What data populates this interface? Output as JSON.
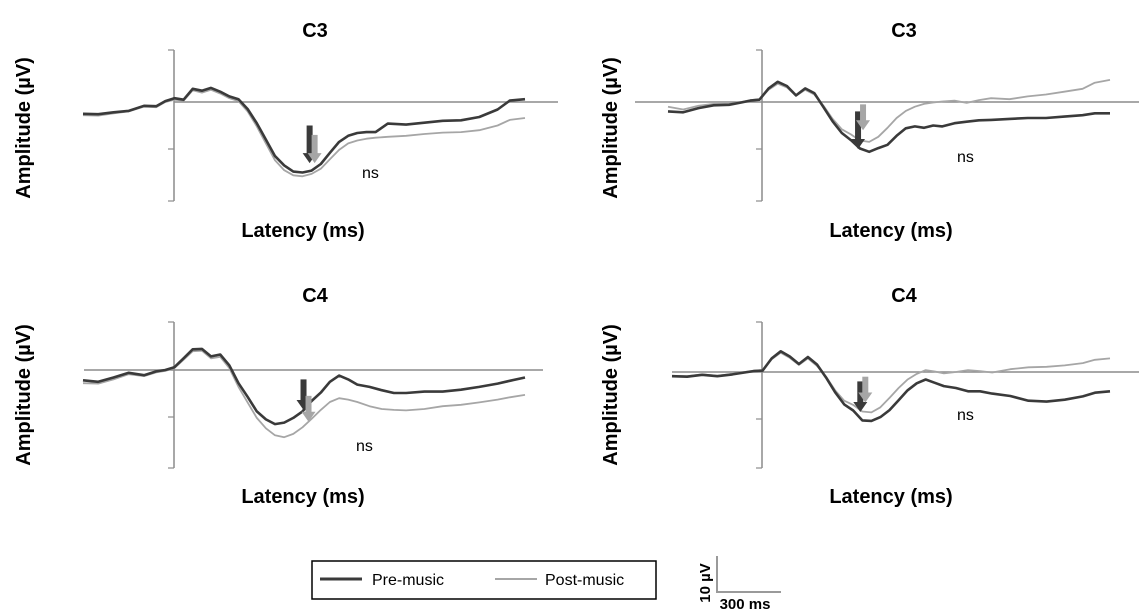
{
  "chart_data": {
    "type": "line",
    "legend": {
      "placement": "bottom-center",
      "entries": [
        {
          "label": "Pre-music",
          "color": "#3a3a3a"
        },
        {
          "label": "Post-music",
          "color": "#a6a6a6"
        }
      ]
    },
    "scale_bar": {
      "amplitude_label": "10 µV",
      "time_label": "300 ms"
    },
    "panels": [
      {
        "title": "C3",
        "xlabel": "Latency (ms)",
        "ylabel": "Amplitude (µV)",
        "annotation": "ns",
        "xlim": [
          -300,
          1150
        ],
        "ylim": [
          -21,
          11
        ],
        "arrow_x": 450,
        "arrows": [
          {
            "series": "Pre-music",
            "y_start": -5,
            "y_end": -13
          },
          {
            "series": "Post-music",
            "y_start": -7,
            "y_end": -13
          }
        ],
        "series": [
          {
            "name": "Pre-music",
            "x": [
              -300,
              -250,
              -200,
              -150,
              -100,
              -60,
              -30,
              0,
              30,
              60,
              90,
              120,
              150,
              180,
              210,
              240,
              270,
              300,
              330,
              360,
              390,
              420,
              450,
              480,
              510,
              540,
              570,
              600,
              630,
              660,
              700,
              760,
              820,
              880,
              940,
              1000,
              1060,
              1100,
              1150
            ],
            "y": [
              -2.5,
              -2.6,
              -2.2,
              -1.9,
              -0.8,
              -0.9,
              0.2,
              0.8,
              0.5,
              2.8,
              2.4,
              3.0,
              2.2,
              1.2,
              0.6,
              -1.5,
              -4.5,
              -8,
              -11.5,
              -13.5,
              -14.8,
              -15,
              -14.6,
              -13.2,
              -10.8,
              -8.5,
              -7.2,
              -6.6,
              -6.4,
              -6.4,
              -4.6,
              -4.8,
              -4.4,
              -4.0,
              -3.9,
              -3.2,
              -1.6,
              0.3,
              0.6
            ]
          },
          {
            "name": "Post-music",
            "x": [
              -300,
              -250,
              -200,
              -150,
              -100,
              -60,
              -30,
              0,
              30,
              60,
              90,
              120,
              150,
              180,
              210,
              240,
              270,
              300,
              330,
              360,
              390,
              420,
              450,
              480,
              510,
              540,
              570,
              600,
              630,
              660,
              700,
              760,
              820,
              880,
              940,
              1000,
              1060,
              1100,
              1150
            ],
            "y": [
              -2.8,
              -2.9,
              -2.4,
              -2.0,
              -1.0,
              -1.1,
              0,
              0.5,
              0.3,
              2.5,
              2.0,
              2.6,
              1.8,
              0.8,
              0.2,
              -2.0,
              -5.2,
              -8.8,
              -12.4,
              -14.5,
              -15.6,
              -15.8,
              -15.3,
              -14.2,
              -12.2,
              -10.2,
              -8.8,
              -8.2,
              -7.8,
              -7.6,
              -7.4,
              -7.2,
              -6.8,
              -6.5,
              -6.4,
              -6.0,
              -5.0,
              -3.8,
              -3.4
            ]
          }
        ]
      },
      {
        "title": "C3",
        "xlabel": "Latency (ms)",
        "ylabel": "Amplitude (µV)",
        "annotation": "ns",
        "xlim": [
          -300,
          1150
        ],
        "ylim": [
          -21,
          11
        ],
        "arrow_x": 330,
        "arrows": [
          {
            "series": "Pre-music",
            "y_start": -2,
            "y_end": -10
          },
          {
            "series": "Post-music",
            "y_start": -0.5,
            "y_end": -6
          }
        ],
        "series": [
          {
            "name": "Pre-music",
            "x": [
              -300,
              -250,
              -200,
              -150,
              -100,
              -60,
              -30,
              0,
              30,
              60,
              90,
              120,
              150,
              180,
              210,
              240,
              270,
              300,
              330,
              360,
              390,
              420,
              450,
              480,
              510,
              540,
              570,
              600,
              640,
              680,
              720,
              760,
              820,
              880,
              940,
              1000,
              1060,
              1100,
              1150
            ],
            "y": [
              -2.0,
              -2.2,
              -1.3,
              -0.7,
              -0.6,
              -0.1,
              0.3,
              0.5,
              2.9,
              4.3,
              3.4,
              1.4,
              2.9,
              1.9,
              -1.1,
              -4.1,
              -6.6,
              -8.1,
              -9.9,
              -10.6,
              -9.8,
              -9.1,
              -7.2,
              -5.6,
              -5.2,
              -5.5,
              -5.0,
              -5.2,
              -4.5,
              -4.2,
              -3.9,
              -3.8,
              -3.6,
              -3.4,
              -3.4,
              -3.1,
              -2.8,
              -2.4,
              -2.4
            ]
          },
          {
            "name": "Post-music",
            "x": [
              -300,
              -250,
              -200,
              -150,
              -100,
              -60,
              -30,
              0,
              30,
              60,
              90,
              120,
              150,
              180,
              210,
              240,
              270,
              300,
              330,
              360,
              390,
              420,
              450,
              480,
              510,
              540,
              570,
              600,
              640,
              680,
              720,
              760,
              820,
              880,
              940,
              1000,
              1060,
              1100,
              1150
            ],
            "y": [
              -1.0,
              -1.6,
              -0.8,
              -0.4,
              -0.4,
              0,
              0.4,
              0.6,
              2.6,
              3.9,
              3.1,
              1.3,
              2.6,
              1.6,
              -0.8,
              -3.6,
              -5.8,
              -6.9,
              -8.2,
              -8.5,
              -7.4,
              -5.5,
              -3.4,
              -1.9,
              -1.0,
              -0.4,
              -0.1,
              0.1,
              0.3,
              -0.2,
              0.4,
              0.8,
              0.6,
              1.2,
              1.6,
              2.2,
              2.8,
              4.1,
              4.7
            ]
          }
        ]
      },
      {
        "title": "C4",
        "xlabel": "Latency (ms)",
        "ylabel": "Amplitude (µV)",
        "annotation": "ns",
        "xlim": [
          -300,
          1150
        ],
        "ylim": [
          -21,
          11
        ],
        "arrow_x": 430,
        "arrows": [
          {
            "series": "Pre-music",
            "y_start": -2,
            "y_end": -8.5
          },
          {
            "series": "Post-music",
            "y_start": -5.5,
            "y_end": -11
          }
        ],
        "series": [
          {
            "name": "Pre-music",
            "x": [
              -300,
              -250,
              -200,
              -150,
              -100,
              -60,
              -30,
              0,
              30,
              60,
              90,
              120,
              150,
              180,
              210,
              240,
              270,
              300,
              330,
              360,
              390,
              420,
              450,
              480,
              510,
              540,
              570,
              600,
              640,
              680,
              720,
              760,
              820,
              880,
              940,
              1000,
              1060,
              1100,
              1150
            ],
            "y": [
              -2.2,
              -2.5,
              -1.6,
              -0.6,
              -1.1,
              -0.3,
              0,
              0.6,
              2.5,
              4.4,
              4.5,
              2.9,
              3.3,
              1.0,
              -2.8,
              -5.7,
              -8.8,
              -10.5,
              -11.5,
              -11.2,
              -10.2,
              -8.8,
              -6.6,
              -4.8,
              -2.5,
              -1.2,
              -2.0,
              -3.1,
              -3.6,
              -4.3,
              -4.9,
              -4.9,
              -4.6,
              -4.6,
              -4.2,
              -3.6,
              -2.9,
              -2.3,
              -1.6
            ]
          },
          {
            "name": "Post-music",
            "x": [
              -300,
              -250,
              -200,
              -150,
              -100,
              -60,
              -30,
              0,
              30,
              60,
              90,
              120,
              150,
              180,
              210,
              240,
              270,
              300,
              330,
              360,
              390,
              420,
              450,
              480,
              510,
              540,
              570,
              600,
              640,
              680,
              720,
              760,
              820,
              880,
              940,
              1000,
              1060,
              1100,
              1150
            ],
            "y": [
              -2.8,
              -2.9,
              -2.0,
              -0.9,
              -1.3,
              -0.5,
              -0.2,
              0.4,
              2.2,
              4.0,
              4.1,
              2.5,
              2.8,
              0.4,
              -3.6,
              -6.9,
              -10.2,
              -12.4,
              -13.9,
              -14.3,
              -13.6,
              -12.2,
              -10.4,
              -8.5,
              -6.8,
              -6.0,
              -6.3,
              -6.8,
              -7.7,
              -8.3,
              -8.5,
              -8.6,
              -8.3,
              -7.7,
              -7.4,
              -6.9,
              -6.3,
              -5.8,
              -5.3
            ]
          }
        ]
      },
      {
        "title": "C4",
        "xlabel": "Latency (ms)",
        "ylabel": "Amplitude (µV)",
        "annotation": "ns",
        "xlim": [
          -300,
          1150
        ],
        "ylim": [
          -21,
          11
        ],
        "arrow_x": 330,
        "arrows": [
          {
            "series": "Pre-music",
            "y_start": -2,
            "y_end": -8.5
          },
          {
            "series": "Post-music",
            "y_start": -1,
            "y_end": -6.5
          }
        ],
        "series": [
          {
            "name": "Pre-music",
            "x": [
              -300,
              -250,
              -200,
              -150,
              -100,
              -60,
              -30,
              0,
              30,
              60,
              90,
              120,
              150,
              180,
              210,
              240,
              270,
              300,
              330,
              360,
              390,
              420,
              450,
              480,
              510,
              540,
              570,
              600,
              640,
              680,
              720,
              760,
              820,
              880,
              940,
              1000,
              1060,
              1100,
              1150
            ],
            "y": [
              -0.9,
              -1.0,
              -0.6,
              -0.9,
              -0.5,
              -0.1,
              0.2,
              0.3,
              2.9,
              4.4,
              3.3,
              1.7,
              3.2,
              1.6,
              -1.2,
              -4.3,
              -6.9,
              -8.2,
              -10.3,
              -10.4,
              -9.6,
              -8.1,
              -6.0,
              -3.9,
              -2.4,
              -1.6,
              -2.3,
              -3.0,
              -3.4,
              -4.1,
              -4.1,
              -4.6,
              -5.1,
              -6.1,
              -6.3,
              -5.9,
              -5.2,
              -4.4,
              -4.1
            ]
          },
          {
            "name": "Post-music",
            "x": [
              -300,
              -250,
              -200,
              -150,
              -100,
              -60,
              -30,
              0,
              30,
              60,
              90,
              120,
              150,
              180,
              210,
              240,
              270,
              300,
              330,
              360,
              390,
              420,
              450,
              480,
              510,
              540,
              570,
              600,
              640,
              680,
              720,
              760,
              820,
              880,
              940,
              1000,
              1060,
              1100,
              1150
            ],
            "y": [
              -0.8,
              -0.9,
              -0.5,
              -0.8,
              -0.4,
              0,
              0.3,
              0.4,
              2.7,
              4.1,
              3.0,
              1.5,
              2.9,
              1.3,
              -1.0,
              -3.9,
              -6.1,
              -7.0,
              -8.4,
              -8.6,
              -7.5,
              -5.5,
              -3.4,
              -1.6,
              -0.4,
              0.4,
              0.1,
              -0.3,
              0,
              0.4,
              0.2,
              -0.1,
              0.6,
              1.0,
              1.1,
              1.4,
              1.9,
              2.6,
              2.9
            ]
          }
        ]
      }
    ]
  }
}
